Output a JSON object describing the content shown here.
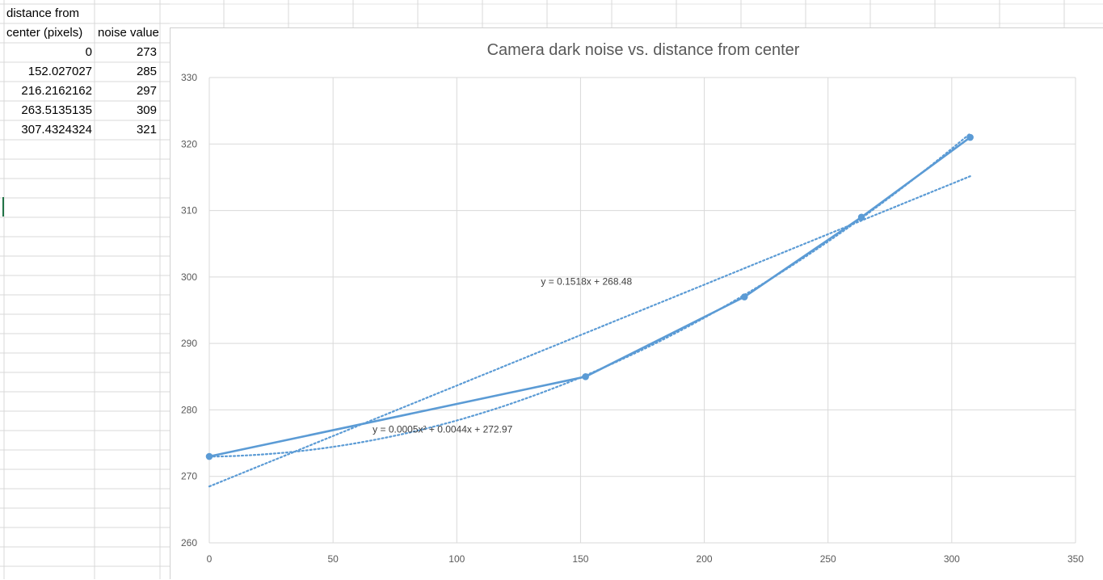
{
  "spreadsheet": {
    "header": {
      "col_a_line1": "distance from",
      "col_a_line2": "center (pixels)",
      "col_b": "noise value"
    },
    "rows": [
      {
        "distance": "0",
        "noise": "273"
      },
      {
        "distance": "152.027027",
        "noise": "285"
      },
      {
        "distance": "216.2162162",
        "noise": "297"
      },
      {
        "distance": "263.5135135",
        "noise": "309"
      },
      {
        "distance": "307.4324324",
        "noise": "321"
      }
    ]
  },
  "chart_data": {
    "type": "scatter",
    "title": "Camera dark noise vs. distance from center",
    "xlim": [
      0,
      350
    ],
    "ylim": [
      260,
      330
    ],
    "x_ticks": [
      0,
      50,
      100,
      150,
      200,
      250,
      300,
      350
    ],
    "y_ticks": [
      260,
      270,
      280,
      290,
      300,
      310,
      320,
      330
    ],
    "grid": true,
    "legend": "none",
    "series": [
      {
        "x": [
          0,
          152.027027,
          216.2162162,
          263.5135135,
          307.4324324
        ],
        "y": [
          273,
          285,
          297,
          309,
          321
        ],
        "color": "#5b9bd5",
        "style": "line-markers"
      }
    ],
    "trendlines": [
      {
        "kind": "linear",
        "slope": 0.1518,
        "intercept": 268.48,
        "x_range": [
          0,
          307.4324324
        ],
        "color": "#5b9bd5"
      },
      {
        "kind": "polynomial",
        "coefficients": [
          0.0005,
          0.0044,
          272.97
        ],
        "x_range": [
          0,
          307.4324324
        ],
        "color": "#5b9bd5"
      }
    ],
    "annotations": [
      {
        "text": "y = 0.1518x + 268.48",
        "anchor_x": 134,
        "anchor_y": 298.8
      },
      {
        "text": "y = 0.0005x² + 0.0044x + 272.97",
        "anchor_x": 66,
        "anchor_y": 276.6
      }
    ]
  }
}
